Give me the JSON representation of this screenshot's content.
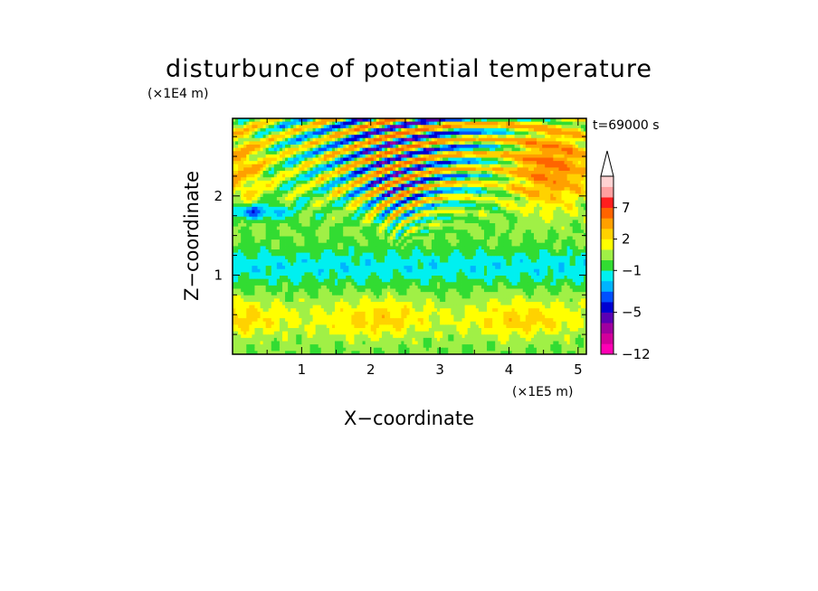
{
  "chart_data": {
    "type": "heatmap",
    "title": "disturbunce of potential temperature",
    "time_label": "t=69000 s",
    "xlabel": "X−coordinate",
    "ylabel": "Z−coordinate",
    "x_scale_label": "(×1E5 m)",
    "y_scale_label": "(×1E4 m)",
    "xlim": [
      0,
      5.12
    ],
    "ylim": [
      0,
      2.98
    ],
    "x_ticks": [
      {
        "value": 1,
        "label": "1"
      },
      {
        "value": 2,
        "label": "2"
      },
      {
        "value": 3,
        "label": "3"
      },
      {
        "value": 4,
        "label": "4"
      },
      {
        "value": 5,
        "label": "5"
      }
    ],
    "y_ticks": [
      {
        "value": 1,
        "label": "1"
      },
      {
        "value": 2,
        "label": "2"
      }
    ],
    "colorbar": {
      "levels": [
        -12,
        -10,
        -8,
        -6,
        -5,
        -4,
        -3,
        -2,
        -1,
        0,
        1,
        2,
        3,
        5,
        7,
        9,
        11
      ],
      "colors": [
        "#ff00b4",
        "#d2009b",
        "#a000a0",
        "#5a00b4",
        "#0000d2",
        "#0050ff",
        "#00b4ff",
        "#00f0f0",
        "#32dc32",
        "#a0f046",
        "#ffff00",
        "#ffd200",
        "#ffa000",
        "#ff6400",
        "#ff1e1e",
        "#ffa0a0",
        "#ffd2d2"
      ],
      "tick_labels": [
        {
          "value": 7,
          "label": "7"
        },
        {
          "value": 2,
          "label": "2"
        },
        {
          "value": -1,
          "label": "−1"
        },
        {
          "value": -5,
          "label": "−5"
        },
        {
          "value": -12,
          "label": "−12"
        }
      ],
      "extend": "max"
    },
    "grid": false
  }
}
